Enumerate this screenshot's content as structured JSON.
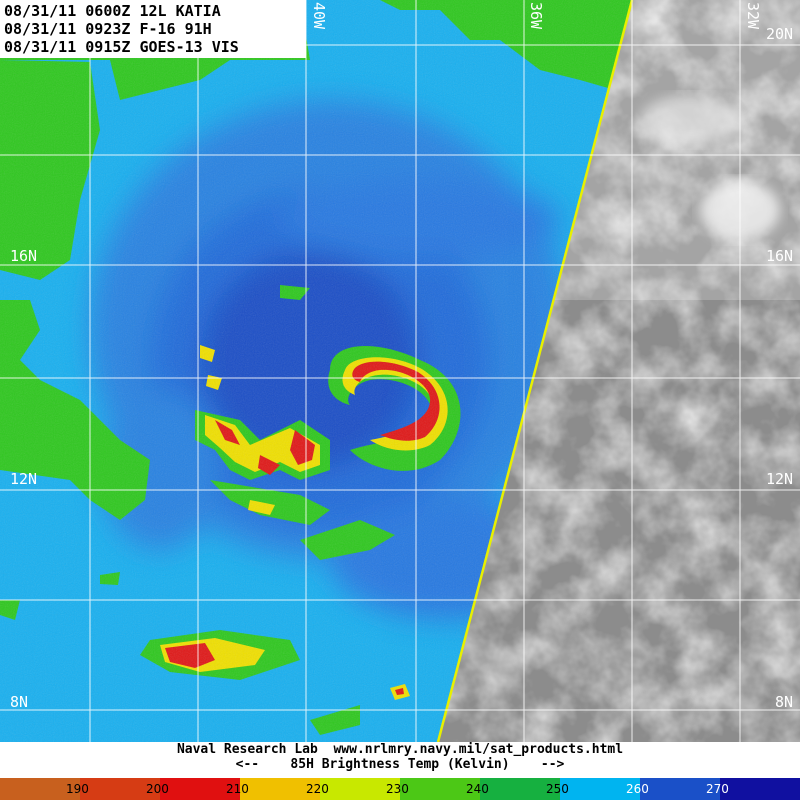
{
  "header": {
    "line1": "08/31/11 0600Z 12L KATIA",
    "line2": "08/31/11 0923Z F-16 91H",
    "line3": "08/31/11 0915Z GOES-13 VIS"
  },
  "latitude_labels": [
    "16N",
    "12N",
    "8N",
    "20N"
  ],
  "longitude_labels": [
    "40W",
    "36W",
    "32W"
  ],
  "footer": {
    "credit": "Naval Research Lab  www.nrlmry.navy.mil/sat_products.html",
    "scale_caption": "<--    85H Brightness Temp (Kelvin)    -->"
  },
  "colorbar": {
    "ticks": [
      "190",
      "200",
      "210",
      "220",
      "230",
      "240",
      "250",
      "260",
      "270"
    ],
    "colors": [
      "#c8601e",
      "#d63c14",
      "#e01010",
      "#f0c000",
      "#c8e800",
      "#4cc816",
      "#16b040",
      "#00b4f0",
      "#1a50c8",
      "#1010a0"
    ]
  },
  "map_colors": {
    "land_green": "#2ec81e",
    "ocean_cyan": "#18b0f0",
    "deep_blue": "#2060d8",
    "core_blue": "#1c3ec0",
    "red": "#e01818",
    "yellow": "#f0e000",
    "swath_edge": "#e8f000",
    "vis_gray": "#9a9a9a"
  }
}
